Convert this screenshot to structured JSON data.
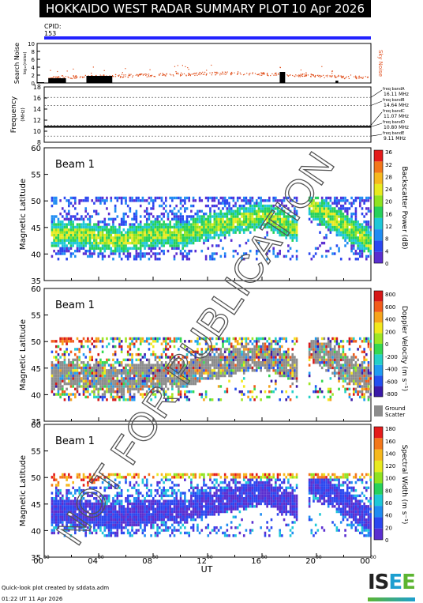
{
  "title": {
    "left": "HOKKAIDO WEST RADAR SUMMARY PLOT",
    "right": "10 Apr 2026"
  },
  "cpid": {
    "label": "CPID:",
    "value": "153"
  },
  "noise_panel": {
    "ylabel_main": "Search Noise",
    "ylabel_sub": "log₁₀(noise)",
    "right_label": "Sky Noise",
    "yticks": [
      "0",
      "2",
      "4",
      "6",
      "8",
      "10"
    ]
  },
  "freq_panel": {
    "ylabel": "Frequency",
    "yunit": "(MHz)",
    "yticks": [
      "8",
      "10",
      "12",
      "14",
      "16",
      "18"
    ],
    "bands": [
      {
        "name": "freq bandA",
        "value": "16.11 MHz"
      },
      {
        "name": "freq bandB",
        "value": "14.64 MHz"
      },
      {
        "name": "freq bandC",
        "value": "11.07 MHz"
      },
      {
        "name": "freq bandD",
        "value": "10.80 MHz"
      },
      {
        "name": "freq bandE",
        "value": "9.11 MHz"
      }
    ]
  },
  "panels": [
    {
      "beam": "Beam  1",
      "ylabel": "Magnetic Latitude",
      "yticks": [
        "35",
        "40",
        "45",
        "50",
        "55",
        "60"
      ],
      "cbar_label": "Backscatter Power (dB)",
      "cbar_ticks": [
        "0",
        "4",
        "8",
        "12",
        "16",
        "20",
        "24",
        "28",
        "32",
        "36"
      ],
      "palette": "power"
    },
    {
      "beam": "Beam  1",
      "ylabel": "Magnetic Latitude",
      "yticks": [
        "35",
        "40",
        "45",
        "50",
        "55",
        "60"
      ],
      "cbar_label": "Doppler Velocity (m s⁻¹)",
      "cbar_ticks": [
        "-800",
        "-600",
        "-400",
        "-200",
        "0",
        "200",
        "400",
        "600",
        "800"
      ],
      "ground_scatter": "Ground\nScatter",
      "palette": "velocity"
    },
    {
      "beam": "Beam  1",
      "ylabel": "Magnetic Latitude",
      "yticks": [
        "35",
        "40",
        "45",
        "50",
        "55",
        "60"
      ],
      "cbar_label": "Spectral Width (m s⁻¹)",
      "cbar_ticks": [
        "0",
        "20",
        "40",
        "60",
        "80",
        "100",
        "120",
        "140",
        "160",
        "180"
      ],
      "palette": "width"
    }
  ],
  "xaxis": {
    "label": "UT",
    "ticks": [
      {
        "h": "00",
        "m": "00"
      },
      {
        "h": "04",
        "m": "00"
      },
      {
        "h": "08",
        "m": "00"
      },
      {
        "h": "12",
        "m": "00"
      },
      {
        "h": "16",
        "m": "00"
      },
      {
        "h": "20",
        "m": "00"
      },
      {
        "h": "00",
        "m": "00"
      }
    ]
  },
  "watermark": "NOT FOR PUBLICATION",
  "footer": {
    "line1": "Quick-look plot created by sddata.adm",
    "line2": "01:22 UT 11 Apr 2026"
  },
  "logo": {
    "text_a": "IS",
    "text_b": "E",
    "text_c": "E"
  },
  "chart_data": [
    {
      "type": "heatmap",
      "title": "",
      "xlabel": "UT",
      "ylabel": "Magnetic Latitude",
      "xlim": [
        0,
        24
      ],
      "ylim": [
        35,
        60
      ],
      "colorbar_label": "Backscatter Power (dB)",
      "clim": [
        0,
        36
      ],
      "echo_regions": [
        {
          "t_start": 0.5,
          "t_end": 10.5,
          "lat_min": 40,
          "lat_max": 50.5,
          "note": "green/cyan band, strongest near 43"
        },
        {
          "t_start": 10.5,
          "t_end": 18.5,
          "lat_min": 44,
          "lat_max": 50.5,
          "note": "band rising toward 48 then dropping to 43"
        },
        {
          "t_start": 19.5,
          "t_end": 24,
          "lat_min": 40,
          "lat_max": 50.5,
          "note": "descending band 49 to 41"
        }
      ]
    },
    {
      "type": "heatmap",
      "title": "",
      "xlabel": "UT",
      "ylabel": "Magnetic Latitude",
      "xlim": [
        0,
        24
      ],
      "ylim": [
        35,
        60
      ],
      "colorbar_label": "Doppler Velocity (m s⁻¹)",
      "clim": [
        -800,
        800
      ],
      "echo_regions": [
        {
          "t_start": 0.5,
          "t_end": 24,
          "lat_min": 39,
          "lat_max": 50.5,
          "note": "mostly ground scatter (grey) with mixed velocity"
        }
      ]
    },
    {
      "type": "heatmap",
      "title": "",
      "xlabel": "UT",
      "ylabel": "Magnetic Latitude",
      "xlim": [
        0,
        24
      ],
      "ylim": [
        35,
        60
      ],
      "colorbar_label": "Spectral Width (m s⁻¹)",
      "clim": [
        0,
        180
      ],
      "echo_regions": [
        {
          "t_start": 0.5,
          "t_end": 24,
          "lat_min": 39,
          "lat_max": 50.5,
          "note": "low widths (blue) in main band, high widths (orange/red) near 50"
        }
      ]
    },
    {
      "type": "line",
      "title": "",
      "ylabel": "Search Noise",
      "xlim": [
        0,
        24
      ],
      "ylim": [
        0,
        10
      ],
      "series": [
        {
          "name": "Sky Noise",
          "x": [
            0,
            2,
            4,
            6,
            8,
            10,
            12,
            14,
            16,
            18,
            20,
            22,
            24
          ],
          "y": [
            1.5,
            1.6,
            1.8,
            1.9,
            2.1,
            2.3,
            2.5,
            2.6,
            2.4,
            2.2,
            1.9,
            1.6,
            1.4
          ]
        }
      ]
    },
    {
      "type": "line",
      "title": "",
      "ylabel": "Frequency",
      "xlim": [
        0,
        24
      ],
      "ylim": [
        8,
        18
      ],
      "series": [
        {
          "name": "",
          "x": [
            0,
            24
          ],
          "y": [
            10.8,
            10.8
          ]
        }
      ]
    }
  ]
}
